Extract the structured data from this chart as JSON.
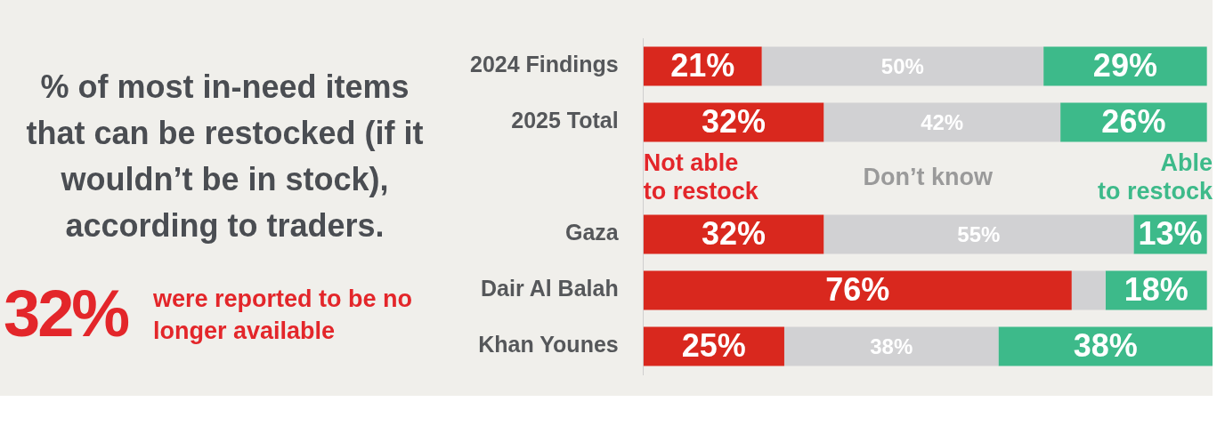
{
  "chart_data": {
    "type": "bar",
    "orientation": "horizontal",
    "stacked": true,
    "title": "% of most in-need items that can be restocked (if it wouldn’t be in stock), according to traders.",
    "annotations": [
      "32%",
      "were reported to be no longer available"
    ],
    "categories": [
      "2024 Findings",
      "2025 Total",
      null,
      "Gaza",
      "Dair Al Balah",
      "Khan Younes"
    ],
    "series": [
      {
        "name": "Not able to restock",
        "color": "#d9281e",
        "values": [
          21,
          32,
          null,
          32,
          76,
          25
        ],
        "value_labels": [
          "21%",
          "32%",
          null,
          "32%",
          "76%",
          "25%"
        ]
      },
      {
        "name": "Don’t know",
        "color": "#d1d1d3",
        "values": [
          50,
          42,
          null,
          55,
          6,
          38
        ],
        "value_labels": [
          "50%",
          "42%",
          null,
          "55%",
          null,
          "38%"
        ]
      },
      {
        "name": "Able to restock",
        "color": "#3dba8a",
        "values": [
          29,
          26,
          null,
          13,
          18,
          38
        ],
        "value_labels": [
          "29%",
          "26%",
          null,
          "13%",
          "18%",
          "38%"
        ]
      }
    ],
    "xlim": [
      0,
      101
    ],
    "grid": false,
    "tick_labels": "y"
  }
}
